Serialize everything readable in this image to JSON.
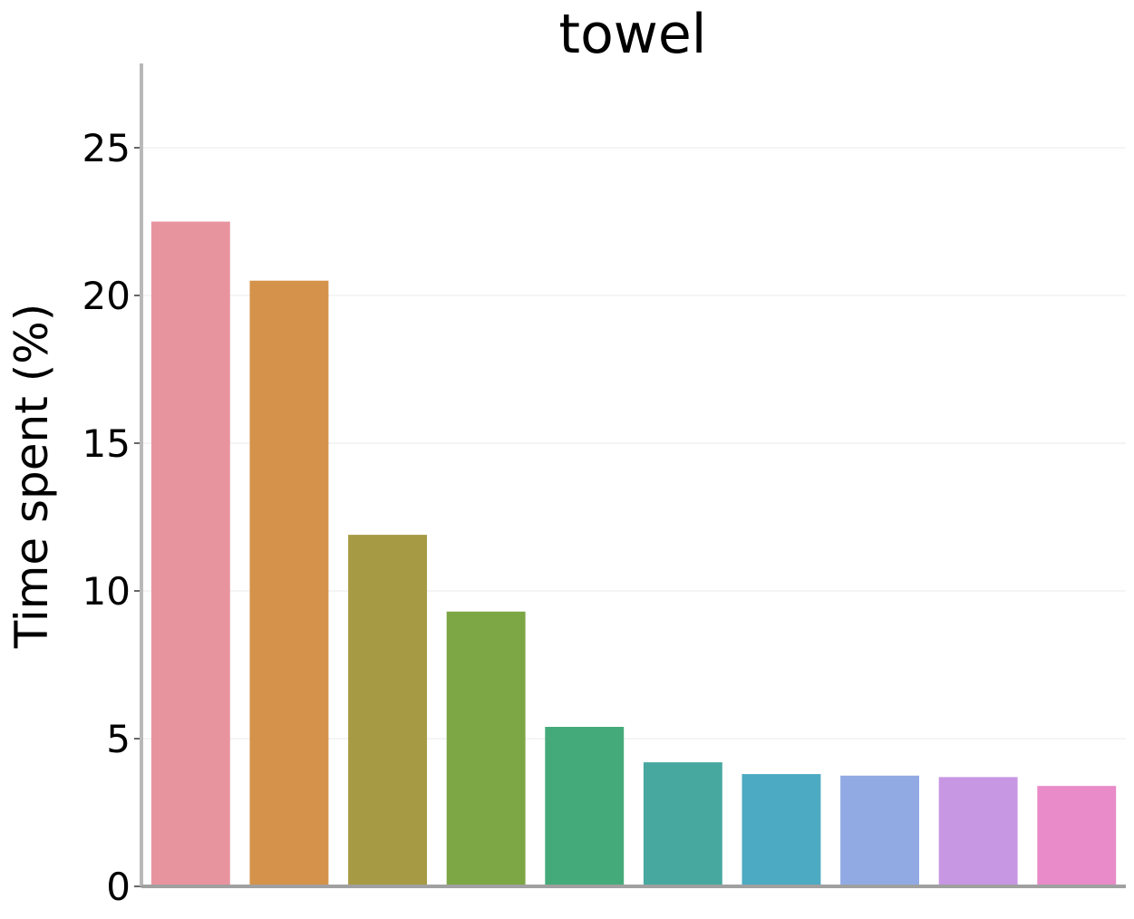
{
  "chart_data": {
    "type": "bar",
    "title": "towel",
    "xlabel": "",
    "ylabel": "Time spent (%)",
    "ylim": [
      0,
      28.5
    ],
    "yticks": [
      0,
      5,
      10,
      15,
      20,
      25
    ],
    "grid": true,
    "categories": [
      "",
      "",
      "",
      "",
      "",
      "",
      "",
      "",
      "",
      ""
    ],
    "values": [
      22.5,
      20.5,
      11.9,
      9.3,
      5.4,
      4.2,
      3.8,
      3.75,
      3.7,
      3.4
    ],
    "colors": [
      "#e8949e",
      "#d4924a",
      "#a79a44",
      "#7da645",
      "#45aa7a",
      "#47a8a0",
      "#4caac2",
      "#92aae4",
      "#c897e4",
      "#e88bc8"
    ]
  }
}
